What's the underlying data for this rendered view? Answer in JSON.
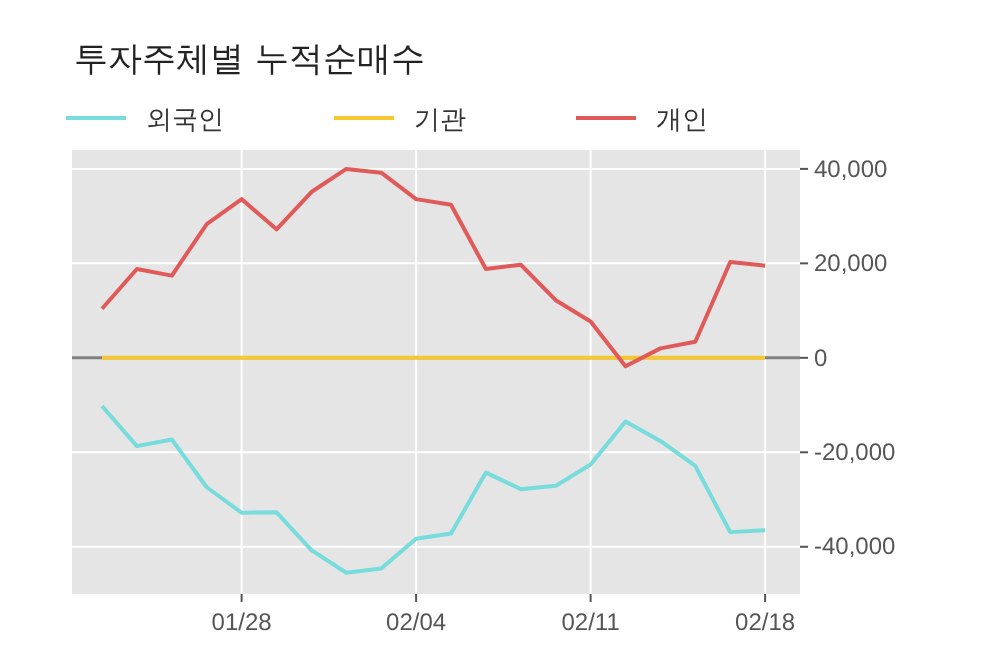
{
  "chart_data": {
    "type": "line",
    "title": "투자주체별 누적순매수",
    "categories": [
      null,
      null,
      null,
      null,
      "01/28",
      null,
      null,
      null,
      null,
      "02/04",
      null,
      null,
      null,
      null,
      "02/11",
      null,
      null,
      null,
      null,
      "02/18"
    ],
    "series": [
      {
        "name": "외국인",
        "color": "#76dcdc",
        "values": [
          -10200,
          -18700,
          -17300,
          -27400,
          -32800,
          -32700,
          -40700,
          -45500,
          -44600,
          -38300,
          -37200,
          -24300,
          -27800,
          -27100,
          -22600,
          -13500,
          -17600,
          -22900,
          -36900,
          -36500
        ]
      },
      {
        "name": "기관",
        "color": "#f5c832",
        "values": [
          0,
          0,
          0,
          0,
          0,
          0,
          0,
          0,
          0,
          0,
          0,
          0,
          0,
          0,
          0,
          0,
          0,
          0,
          0,
          0
        ]
      },
      {
        "name": "개인",
        "color": "#e05a5a",
        "values": [
          10400,
          18800,
          17400,
          28300,
          33600,
          27200,
          35100,
          40000,
          39200,
          33600,
          32400,
          18800,
          19700,
          12200,
          7700,
          -1800,
          2000,
          3400,
          20300,
          19500
        ]
      }
    ],
    "ylim": [
      -50000,
      44000
    ],
    "yticks": [
      {
        "value": -40000,
        "label": "-40,000"
      },
      {
        "value": -20000,
        "label": "-20,000"
      },
      0,
      {
        "value": 20000,
        "label": "20,000"
      },
      {
        "value": 40000,
        "label": "40,000"
      }
    ],
    "ref_lines": [
      {
        "axis": "y",
        "value": 0,
        "color": "#808080"
      }
    ],
    "grid": true,
    "legend": "top left",
    "marker": "none",
    "line_style": "solid"
  }
}
